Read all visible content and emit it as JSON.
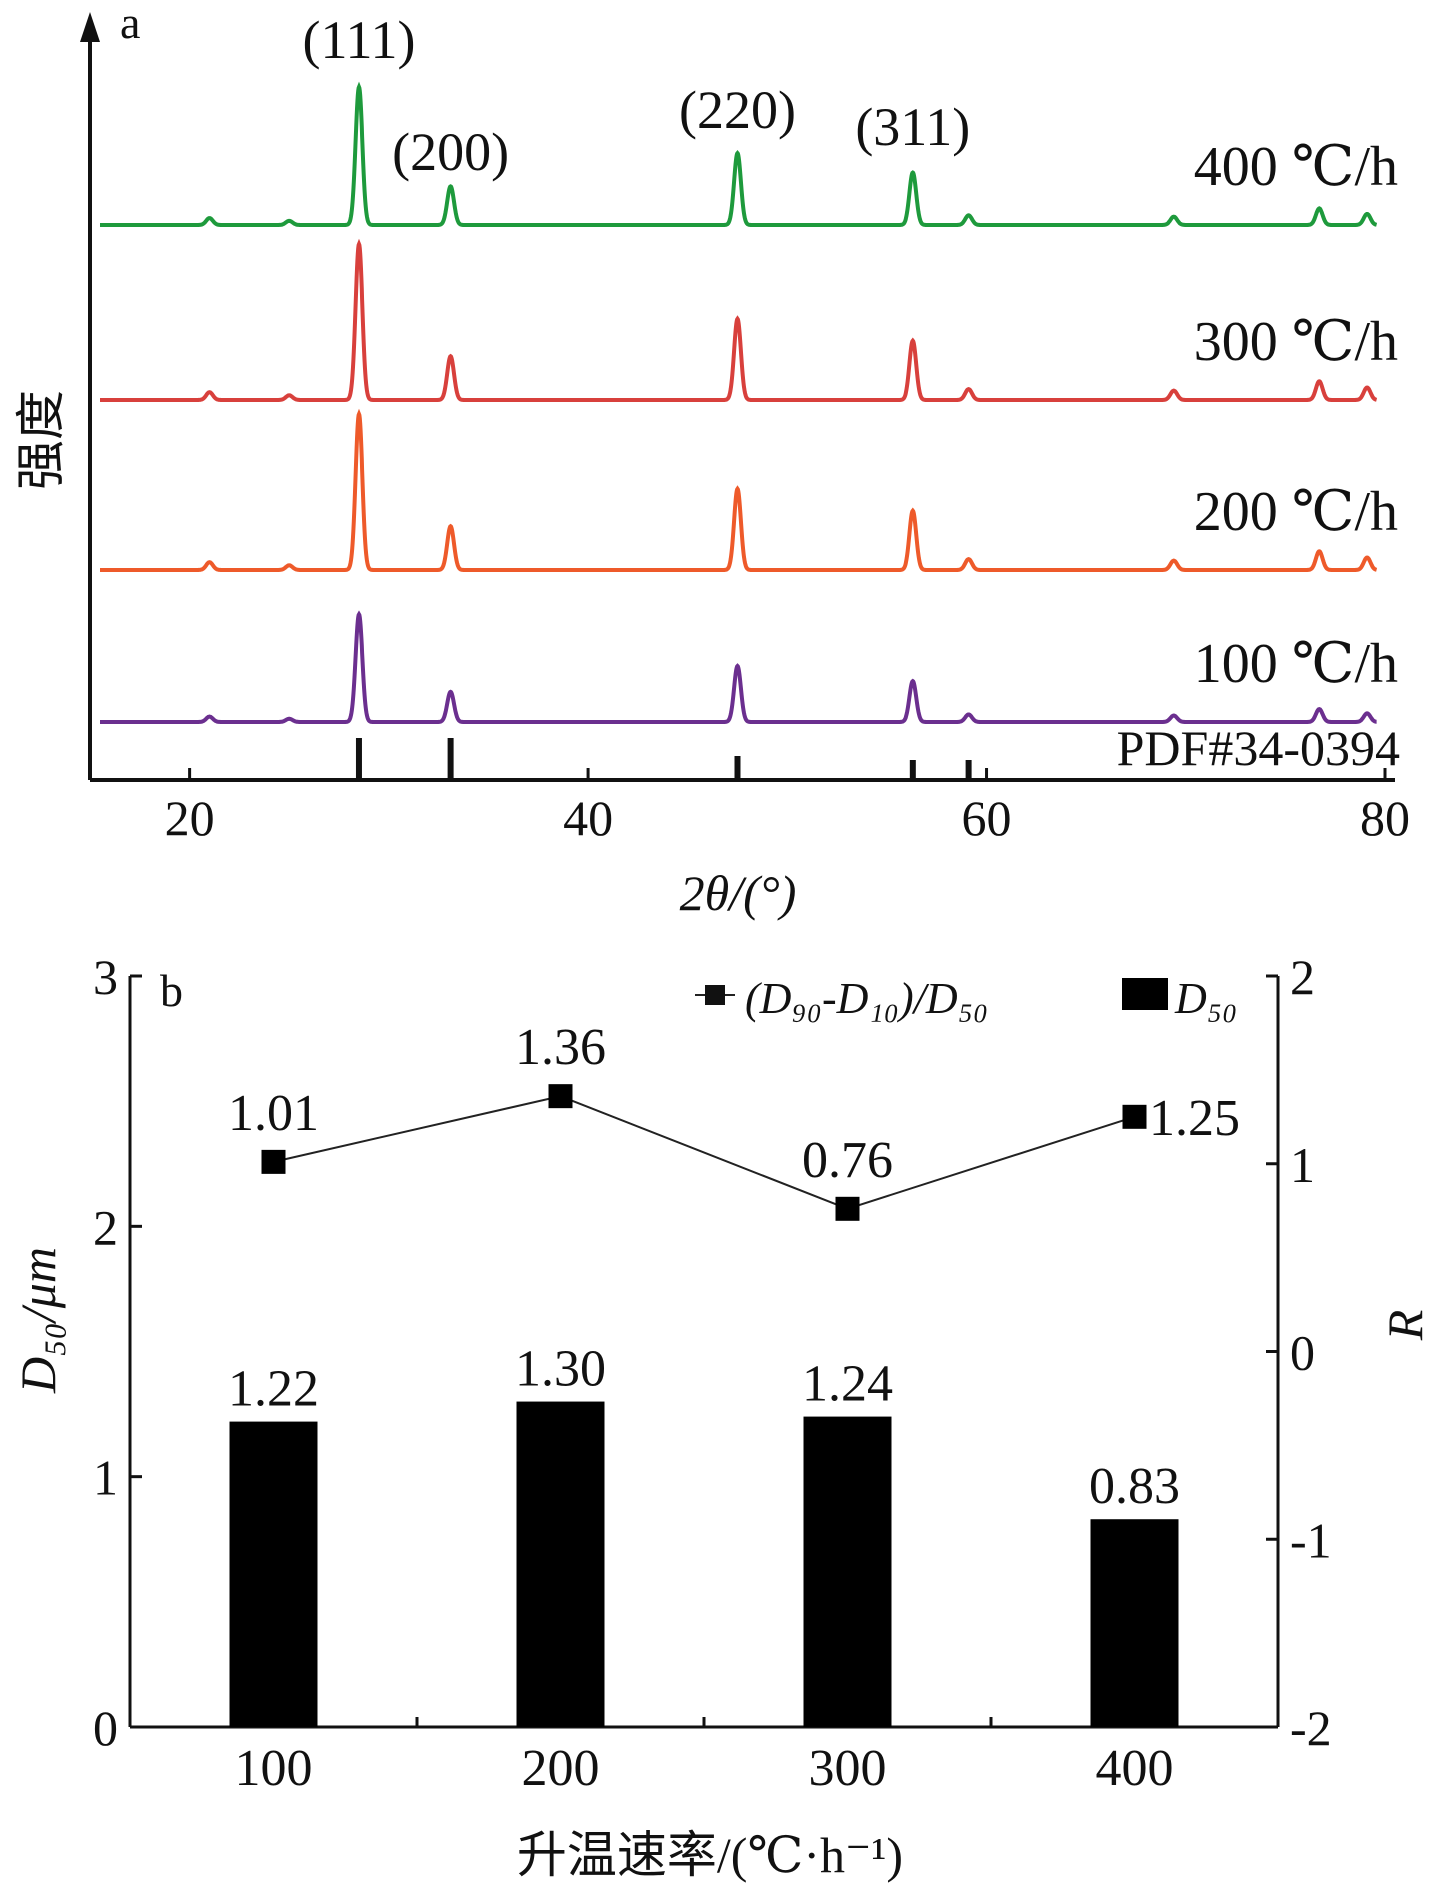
{
  "chart_data": [
    {
      "type": "line",
      "panel_label": "a",
      "xlabel": "2θ/(°)",
      "ylabel": "强度",
      "xlim": [
        15,
        80
      ],
      "x_ticks": [
        "20",
        "40",
        "60",
        "80"
      ],
      "peak_labels": [
        {
          "label": "(111)",
          "x": 28.5
        },
        {
          "label": "(200)",
          "x": 33.1
        },
        {
          "label": "(220)",
          "x": 47.5
        },
        {
          "label": "(311)",
          "x": 56.3
        }
      ],
      "peaks": [
        {
          "x": 21.0,
          "h": 0.05
        },
        {
          "x": 25.0,
          "h": 0.03
        },
        {
          "x": 28.5,
          "h": 1.0
        },
        {
          "x": 33.1,
          "h": 0.28
        },
        {
          "x": 47.5,
          "h": 0.52
        },
        {
          "x": 56.3,
          "h": 0.38
        },
        {
          "x": 59.1,
          "h": 0.07
        },
        {
          "x": 69.4,
          "h": 0.06
        },
        {
          "x": 76.7,
          "h": 0.12
        },
        {
          "x": 79.1,
          "h": 0.08
        }
      ],
      "series": [
        {
          "name": "400 ℃/h",
          "color": "#1e9a3c",
          "scale": 1.0
        },
        {
          "name": "300 ℃/h",
          "color": "#d8403c",
          "scale": 1.13
        },
        {
          "name": "200 ℃/h",
          "color": "#ee5a2a",
          "scale": 1.13
        },
        {
          "name": "100 ℃/h",
          "color": "#6b2f8f",
          "scale": 0.78
        }
      ],
      "reference": {
        "name": "PDF#34-0394",
        "lines": [
          {
            "x": 28.5,
            "h": 1.0
          },
          {
            "x": 33.1,
            "h": 1.0
          },
          {
            "x": 47.5,
            "h": 0.55
          },
          {
            "x": 56.3,
            "h": 0.45
          },
          {
            "x": 59.1,
            "h": 0.45
          }
        ]
      }
    },
    {
      "type": "bar",
      "panel_label": "b",
      "categories": [
        "100",
        "200",
        "300",
        "400"
      ],
      "xlabel": "升温速率/(℃·h⁻¹)",
      "ylabel": "D₅₀/μm",
      "ylim": [
        0,
        3
      ],
      "y_ticks": [
        "0",
        "1",
        "2",
        "3"
      ],
      "y2label": "R",
      "y2lim": [
        -2,
        2
      ],
      "y2_ticks": [
        "-2",
        "-1",
        "0",
        "1",
        "2"
      ],
      "series": [
        {
          "name": "D₅₀",
          "kind": "bar",
          "axis": "left",
          "values": [
            1.22,
            1.3,
            1.24,
            0.83
          ],
          "labels": [
            "1.22",
            "1.30",
            "1.24",
            "0.83"
          ]
        },
        {
          "name": "(D₉₀-D₁₀)/D₅₀",
          "kind": "line",
          "axis": "right",
          "values": [
            1.01,
            1.36,
            0.76,
            1.25
          ],
          "labels": [
            "1.01",
            "1.36",
            "0.76",
            "1.25"
          ]
        }
      ]
    }
  ]
}
